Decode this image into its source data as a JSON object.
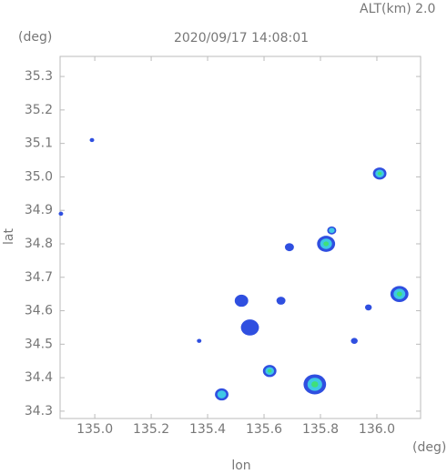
{
  "chart_data": {
    "type": "radar-map",
    "title": "2020/09/17 14:08:01",
    "altitude_label": "ALT(km)  2.0",
    "y_unit": "(deg)",
    "x_unit": "(deg)",
    "x_label": "lon",
    "y_label": "lat",
    "xlim": [
      134.877,
      136.155
    ],
    "ylim": [
      34.278,
      35.36
    ],
    "xticks": [
      {
        "value": 135.0,
        "label": "135.0"
      },
      135.2,
      135.4,
      135.6,
      135.8,
      {
        "value": 136.0,
        "label": "136.0"
      }
    ],
    "yticks": [
      34.3,
      34.4,
      34.5,
      34.6,
      34.7,
      34.8,
      34.9,
      {
        "value": 35.0,
        "label": "35.0"
      },
      35.1,
      35.2,
      35.3
    ],
    "echoes": {
      "x": [
        134.99,
        136.01,
        134.88,
        135.82,
        135.84,
        136.08,
        135.78,
        135.62,
        135.45,
        135.52,
        135.55,
        135.66,
        135.92,
        135.37,
        135.97,
        135.69
      ],
      "y": [
        35.11,
        35.01,
        34.89,
        34.8,
        34.84,
        34.65,
        34.38,
        34.42,
        34.35,
        34.63,
        34.55,
        34.63,
        34.51,
        34.51,
        34.61,
        34.79
      ],
      "size": [
        0.01,
        0.03,
        0.01,
        0.04,
        0.02,
        0.04,
        0.05,
        0.03,
        0.03,
        0.03,
        0.04,
        0.02,
        0.015,
        0.01,
        0.015,
        0.02
      ],
      "intensity": [
        1,
        3,
        1,
        3,
        2,
        3,
        3,
        3,
        2,
        1,
        1,
        1,
        1,
        1,
        1,
        1
      ]
    },
    "colors": [
      "#2f4fe0",
      "#3ec8e6",
      "#3fe07a"
    ]
  }
}
